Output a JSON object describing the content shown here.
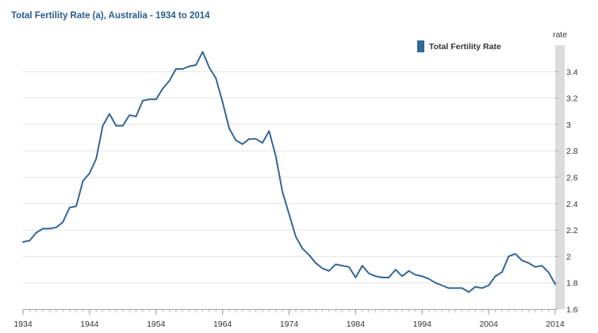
{
  "chart_data": {
    "type": "line",
    "title": "Total Fertility Rate (a), Australia - 1934 to 2014",
    "ylabel": "rate",
    "xlabel": "",
    "xlim": [
      1934,
      2014
    ],
    "ylim": [
      1.6,
      3.6
    ],
    "x_ticks": [
      "1934",
      "1944",
      "1954",
      "1964",
      "1974",
      "1984",
      "1994",
      "2004",
      "2014"
    ],
    "y_ticks": [
      "1.6",
      "1.8",
      "2",
      "2.2",
      "2.4",
      "2.6",
      "2.8",
      "3",
      "3.2",
      "3.4"
    ],
    "grid": true,
    "legend_position": "top-right",
    "colors": {
      "series": "#336699",
      "grid": "#e4e4e4",
      "axis_band": "#dcdcdc",
      "title": "#2b5c8a"
    },
    "series": [
      {
        "name": "Total Fertility Rate",
        "x": [
          1934,
          1935,
          1936,
          1937,
          1938,
          1939,
          1940,
          1941,
          1942,
          1943,
          1944,
          1945,
          1946,
          1947,
          1948,
          1949,
          1950,
          1951,
          1952,
          1953,
          1954,
          1955,
          1956,
          1957,
          1958,
          1959,
          1960,
          1961,
          1962,
          1963,
          1964,
          1965,
          1966,
          1967,
          1968,
          1969,
          1970,
          1971,
          1972,
          1973,
          1974,
          1975,
          1976,
          1977,
          1978,
          1979,
          1980,
          1981,
          1982,
          1983,
          1984,
          1985,
          1986,
          1987,
          1988,
          1989,
          1990,
          1991,
          1992,
          1993,
          1994,
          1995,
          1996,
          1997,
          1998,
          1999,
          2000,
          2001,
          2002,
          2003,
          2004,
          2005,
          2006,
          2007,
          2008,
          2009,
          2010,
          2011,
          2012,
          2013,
          2014
        ],
        "values": [
          2.11,
          2.12,
          2.18,
          2.21,
          2.21,
          2.22,
          2.26,
          2.37,
          2.38,
          2.57,
          2.63,
          2.74,
          2.99,
          3.08,
          2.99,
          2.99,
          3.07,
          3.06,
          3.18,
          3.19,
          3.19,
          3.27,
          3.33,
          3.42,
          3.42,
          3.44,
          3.45,
          3.55,
          3.43,
          3.35,
          3.17,
          2.97,
          2.88,
          2.85,
          2.89,
          2.89,
          2.86,
          2.95,
          2.76,
          2.49,
          2.32,
          2.15,
          2.06,
          2.01,
          1.95,
          1.91,
          1.89,
          1.94,
          1.93,
          1.92,
          1.84,
          1.93,
          1.87,
          1.85,
          1.84,
          1.84,
          1.9,
          1.85,
          1.89,
          1.86,
          1.85,
          1.83,
          1.8,
          1.78,
          1.76,
          1.76,
          1.76,
          1.73,
          1.77,
          1.76,
          1.78,
          1.85,
          1.88,
          2.0,
          2.02,
          1.97,
          1.95,
          1.92,
          1.93,
          1.88,
          1.79
        ]
      }
    ]
  }
}
